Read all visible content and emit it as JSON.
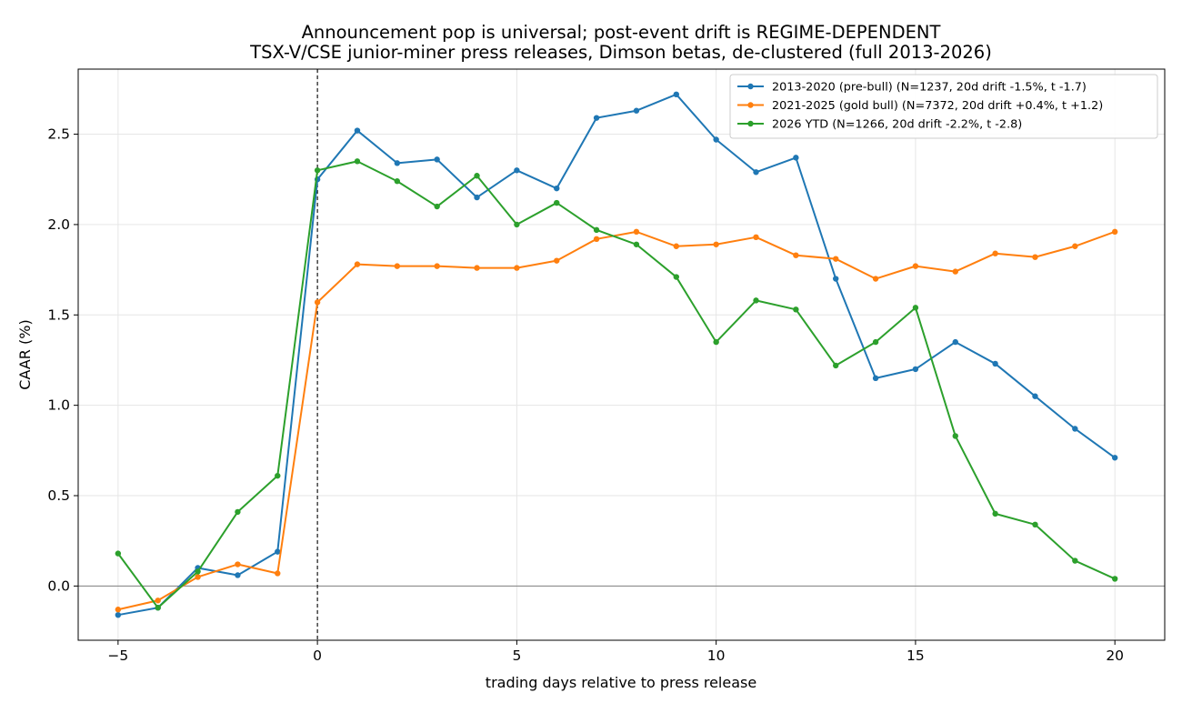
{
  "chart_data": {
    "type": "line",
    "title": "Announcement pop is universal; post-event drift is REGIME-DEPENDENT",
    "subtitle": "TSX-V/CSE junior-miner press releases, Dimson betas, de-clustered (full 2013-2026)",
    "xlabel": "trading days relative to press release",
    "ylabel": "CAAR (%)",
    "xlim": [
      -6.0,
      21.25
    ],
    "ylim": [
      -0.3,
      2.86
    ],
    "xticks": [
      -5,
      0,
      5,
      10,
      15,
      20
    ],
    "xtick_labels": [
      "−5",
      "0",
      "5",
      "10",
      "15",
      "20"
    ],
    "yticks": [
      0.0,
      0.5,
      1.0,
      1.5,
      2.0,
      2.5
    ],
    "ytick_labels": [
      "0.0",
      "0.5",
      "1.0",
      "1.5",
      "2.0",
      "2.5"
    ],
    "grid": true,
    "legend_position": "top-right",
    "reference_lines": {
      "vertical_dashed_x": 0,
      "horizontal_y": 0
    },
    "x": [
      -5,
      -4,
      -3,
      -2,
      -1,
      0,
      1,
      2,
      3,
      4,
      5,
      6,
      7,
      8,
      9,
      10,
      11,
      12,
      13,
      14,
      15,
      16,
      17,
      18,
      19,
      20
    ],
    "series": [
      {
        "name": "2013-2020 (pre-bull)  (N=1237, 20d drift -1.5%, t -1.7)",
        "color": "#1f77b4",
        "values": [
          -0.16,
          -0.12,
          0.1,
          0.06,
          0.19,
          2.25,
          2.52,
          2.34,
          2.36,
          2.15,
          2.3,
          2.2,
          2.59,
          2.63,
          2.72,
          2.47,
          2.29,
          2.37,
          1.7,
          1.15,
          1.2,
          1.35,
          1.23,
          1.05,
          0.87,
          0.71
        ]
      },
      {
        "name": "2021-2025 (gold bull)  (N=7372, 20d drift +0.4%, t +1.2)",
        "color": "#ff7f0e",
        "values": [
          -0.13,
          -0.08,
          0.05,
          0.12,
          0.07,
          1.57,
          1.78,
          1.77,
          1.77,
          1.76,
          1.76,
          1.8,
          1.92,
          1.96,
          1.88,
          1.89,
          1.93,
          1.83,
          1.81,
          1.7,
          1.77,
          1.74,
          1.84,
          1.82,
          1.88,
          1.96
        ]
      },
      {
        "name": "2026 YTD  (N=1266, 20d drift -2.2%, t -2.8)",
        "color": "#2ca02c",
        "values": [
          0.18,
          -0.12,
          0.08,
          0.41,
          0.61,
          2.3,
          2.35,
          2.24,
          2.1,
          2.27,
          2.0,
          2.12,
          1.97,
          1.89,
          1.71,
          1.35,
          1.58,
          1.53,
          1.22,
          1.35,
          1.54,
          0.83,
          0.4,
          0.34,
          0.14,
          0.04
        ]
      }
    ]
  }
}
